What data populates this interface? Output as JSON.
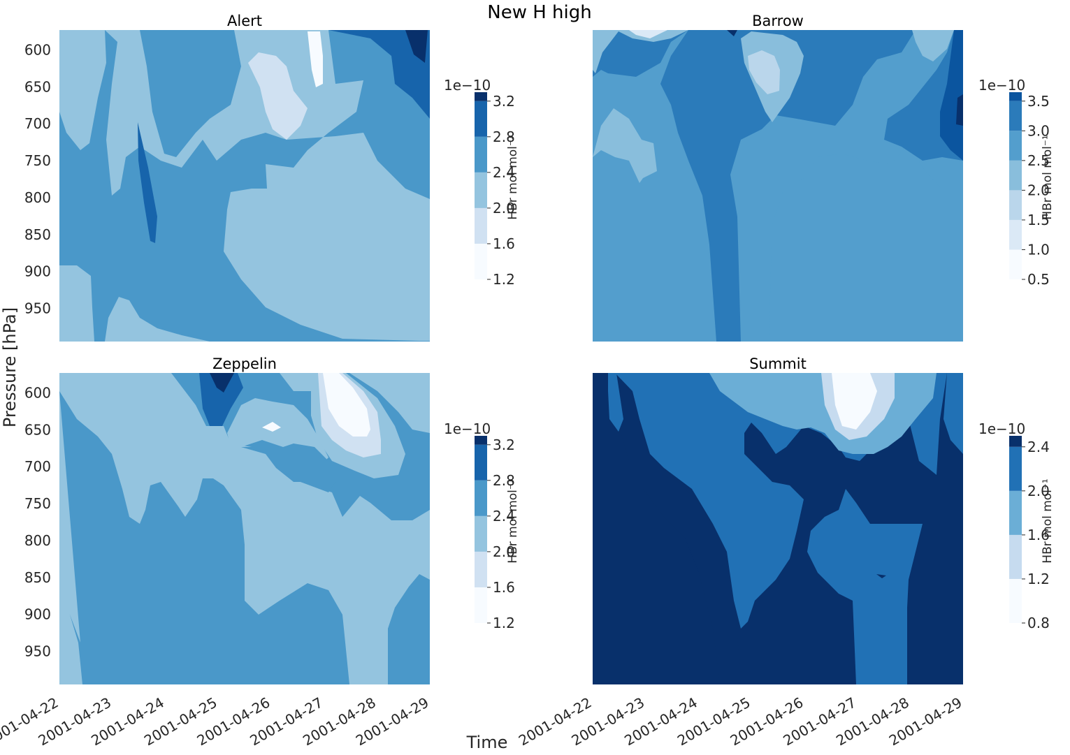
{
  "figure": {
    "suptitle": "New H high",
    "xlabel": "Time",
    "ylabel": "Pressure [hPa]"
  },
  "chart_data": [
    {
      "type": "heatmap",
      "title": "Alert",
      "x_ticks": [
        "2001-04-22",
        "2001-04-23",
        "2001-04-24",
        "2001-04-25",
        "2001-04-26",
        "2001-04-27",
        "2001-04-28",
        "2001-04-29"
      ],
      "y_ticks": [
        600,
        650,
        700,
        750,
        800,
        850,
        900,
        950
      ],
      "ylim": [
        995,
        573
      ],
      "colorbar": {
        "multiplier": "1e−10",
        "label": "HBr mol mol⁻¹",
        "ticks": [
          "1.2",
          "1.6",
          "2.0",
          "2.4",
          "2.8",
          "3.2"
        ],
        "levels": [
          1.2,
          1.6,
          2.0,
          2.4,
          2.8,
          3.2,
          3.3
        ]
      },
      "palette": [
        "#f7fbff",
        "#d0e1f2",
        "#94c4df",
        "#4a98c9",
        "#1764ab",
        "#08306b"
      ]
    },
    {
      "type": "heatmap",
      "title": "Barrow",
      "x_ticks": [
        "2001-04-22",
        "2001-04-23",
        "2001-04-24",
        "2001-04-25",
        "2001-04-26",
        "2001-04-27",
        "2001-04-28",
        "2001-04-29"
      ],
      "y_ticks": [
        600,
        650,
        700,
        750,
        800,
        850,
        900,
        950
      ],
      "ylim": [
        995,
        573
      ],
      "colorbar": {
        "multiplier": "1e−10",
        "label": "HBr mol mol⁻¹",
        "ticks": [
          "0.5",
          "1.0",
          "1.5",
          "2.0",
          "2.5",
          "3.0",
          "3.5"
        ],
        "levels": [
          0.5,
          1.0,
          1.5,
          2.0,
          2.5,
          3.0,
          3.5,
          3.65
        ]
      },
      "palette": [
        "#f7fbff",
        "#dbe9f6",
        "#bad6eb",
        "#89bedc",
        "#539ecd",
        "#2b7bba",
        "#0b559f",
        "#08306b"
      ]
    },
    {
      "type": "heatmap",
      "title": "Zeppelin",
      "x_ticks": [
        "2001-04-22",
        "2001-04-23",
        "2001-04-24",
        "2001-04-25",
        "2001-04-26",
        "2001-04-27",
        "2001-04-28",
        "2001-04-29"
      ],
      "y_ticks": [
        600,
        650,
        700,
        750,
        800,
        850,
        900,
        950
      ],
      "ylim": [
        995,
        573
      ],
      "colorbar": {
        "multiplier": "1e−10",
        "label": "HBr mol mol⁻¹",
        "ticks": [
          "1.2",
          "1.6",
          "2.0",
          "2.4",
          "2.8",
          "3.2"
        ],
        "levels": [
          1.2,
          1.6,
          2.0,
          2.4,
          2.8,
          3.2,
          3.3
        ]
      },
      "palette": [
        "#f7fbff",
        "#d0e1f2",
        "#94c4df",
        "#4a98c9",
        "#1764ab",
        "#08306b"
      ]
    },
    {
      "type": "heatmap",
      "title": "Summit",
      "x_ticks": [
        "2001-04-22",
        "2001-04-23",
        "2001-04-24",
        "2001-04-25",
        "2001-04-26",
        "2001-04-27",
        "2001-04-28",
        "2001-04-29"
      ],
      "y_ticks": [
        600,
        650,
        700,
        750,
        800,
        850,
        900,
        950
      ],
      "ylim": [
        995,
        573
      ],
      "colorbar": {
        "multiplier": "1e−10",
        "label": "HBr mol mol⁻¹",
        "ticks": [
          "0.8",
          "1.2",
          "1.6",
          "2.0",
          "2.4"
        ],
        "levels": [
          0.8,
          1.2,
          1.6,
          2.0,
          2.4,
          2.5
        ]
      },
      "palette": [
        "#f7fbff",
        "#c6dbef",
        "#6baed6",
        "#2171b5",
        "#08306b"
      ]
    }
  ]
}
